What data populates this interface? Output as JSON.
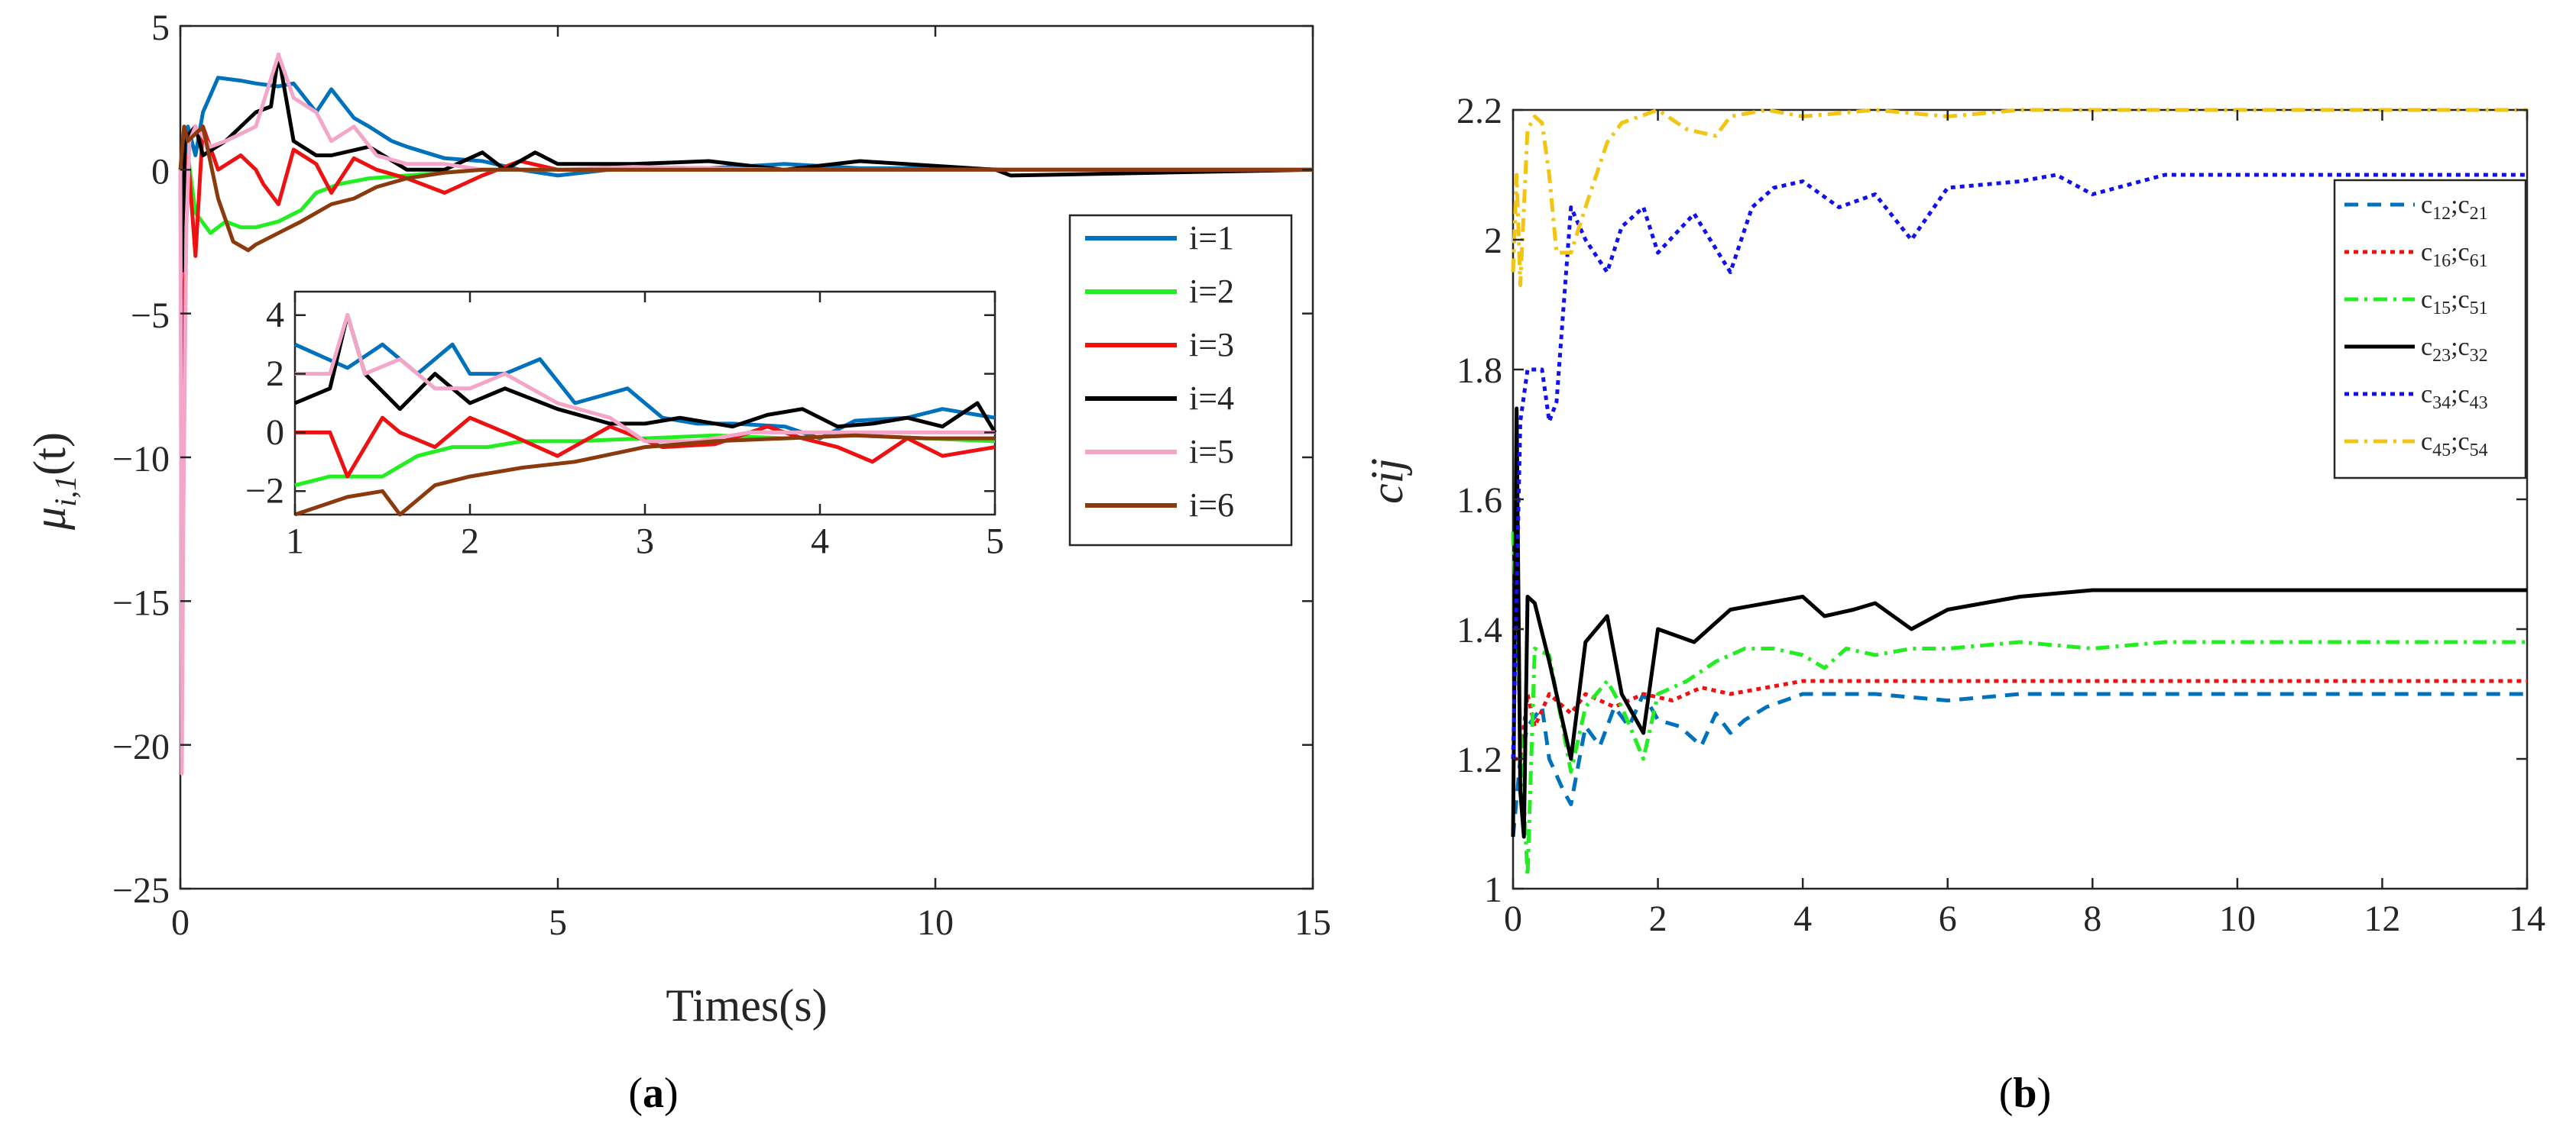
{
  "chart_data": [
    {
      "id": "a",
      "type": "line",
      "caption": [
        "(",
        "a",
        ")"
      ],
      "xlabel": "Times(s)",
      "ylabel": "μ",
      "ylabel_sub": "i,1",
      "ylabel_arg": "(t)",
      "xlim": [
        0,
        15
      ],
      "ylim": [
        -25,
        5
      ],
      "xticks": [
        "0",
        "5",
        "10",
        "15"
      ],
      "yticks": [
        "5",
        "0",
        "−5",
        "−10",
        "−15",
        "−20",
        "−25"
      ],
      "legend": [
        "i=1",
        "i=2",
        "i=3",
        "i=4",
        "i=5",
        "i=6"
      ],
      "colors": [
        "#0072BD",
        "#22EE22",
        "#EE1111",
        "#000000",
        "#F4A6C8",
        "#8B3A0E"
      ],
      "series": [
        {
          "name": "i=1",
          "x": [
            0,
            0.05,
            0.1,
            0.2,
            0.3,
            0.5,
            0.8,
            1.0,
            1.3,
            1.5,
            1.8,
            2.0,
            2.3,
            2.5,
            2.8,
            3.0,
            3.5,
            4.0,
            4.5,
            5.0,
            6.0,
            7.0,
            8.0,
            9.0,
            10.0,
            11.0,
            15.0
          ],
          "y": [
            0,
            -3,
            1.5,
            0.5,
            2.0,
            3.2,
            3.1,
            3.0,
            2.9,
            3.0,
            2.0,
            2.8,
            1.8,
            1.5,
            1.0,
            0.8,
            0.4,
            0.3,
            0.0,
            -0.2,
            0.1,
            0.05,
            0.2,
            0.05,
            0.05,
            0.0,
            0.0
          ]
        },
        {
          "name": "i=2",
          "x": [
            0,
            0.05,
            0.1,
            0.2,
            0.4,
            0.6,
            0.8,
            1.0,
            1.3,
            1.6,
            1.8,
            2.1,
            2.5,
            3.0,
            3.5,
            4.0,
            5.0,
            6.0,
            8.0,
            10.0,
            15.0
          ],
          "y": [
            0,
            -2.0,
            0.5,
            -1.5,
            -2.2,
            -1.8,
            -2.0,
            -2.0,
            -1.8,
            -1.4,
            -0.8,
            -0.5,
            -0.3,
            -0.2,
            -0.1,
            0.0,
            0.0,
            0.0,
            0.0,
            0.0,
            0.0
          ]
        },
        {
          "name": "i=3",
          "x": [
            0,
            0.03,
            0.06,
            0.1,
            0.2,
            0.3,
            0.5,
            0.8,
            1.0,
            1.1,
            1.3,
            1.5,
            1.8,
            2.0,
            2.3,
            2.6,
            3.0,
            3.5,
            4.0,
            4.5,
            5.0,
            6.0,
            8.0,
            10.0,
            15.0
          ],
          "y": [
            0,
            -12.0,
            -4.0,
            0.5,
            -3.0,
            1.5,
            0.0,
            0.5,
            0.0,
            -0.5,
            -1.2,
            0.7,
            0.2,
            -0.8,
            0.4,
            0.0,
            -0.3,
            -0.8,
            -0.2,
            0.3,
            0.0,
            0.0,
            0.0,
            0.0,
            0.0
          ]
        },
        {
          "name": "i=4",
          "x": [
            0,
            0.03,
            0.06,
            0.1,
            0.2,
            0.3,
            0.6,
            1.0,
            1.2,
            1.3,
            1.5,
            1.8,
            2.0,
            2.5,
            3.0,
            3.5,
            4.0,
            4.3,
            4.7,
            5.0,
            6.0,
            7.0,
            8.0,
            9.0,
            10.8,
            11.0,
            15.0
          ],
          "y": [
            0,
            -3.5,
            1.0,
            1.2,
            1.5,
            0.5,
            1.0,
            2.0,
            2.2,
            4.0,
            1.0,
            0.5,
            0.5,
            0.8,
            0.0,
            0.0,
            0.6,
            0.0,
            0.6,
            0.2,
            0.2,
            0.3,
            0.0,
            0.3,
            0.0,
            -0.2,
            0.0
          ]
        },
        {
          "name": "i=5",
          "x": [
            0,
            0.02,
            0.04,
            0.08,
            0.12,
            0.2,
            0.4,
            0.6,
            1.0,
            1.3,
            1.5,
            1.8,
            2.0,
            2.3,
            2.6,
            3.0,
            3.5,
            4.0,
            5.0,
            6.0,
            8.0,
            10.0,
            15.0
          ],
          "y": [
            0,
            -21.0,
            -12.0,
            -2.0,
            1.0,
            1.5,
            0.8,
            1.0,
            1.5,
            4.0,
            2.5,
            2.0,
            1.0,
            1.5,
            0.5,
            0.2,
            0.2,
            0.0,
            0.0,
            0.1,
            0.0,
            0.0,
            0.0
          ]
        },
        {
          "name": "i=6",
          "x": [
            0,
            0.05,
            0.1,
            0.3,
            0.5,
            0.7,
            0.9,
            1.0,
            1.3,
            1.6,
            1.8,
            2.0,
            2.3,
            2.6,
            3.0,
            3.5,
            4.0,
            5.0,
            6.0,
            8.0,
            10.0,
            15.0
          ],
          "y": [
            0,
            1.5,
            1.0,
            1.5,
            -1.0,
            -2.5,
            -2.8,
            -2.6,
            -2.2,
            -1.8,
            -1.5,
            -1.2,
            -1.0,
            -0.6,
            -0.3,
            -0.1,
            0.0,
            0.0,
            0.0,
            0.0,
            0.0,
            0.0
          ]
        }
      ],
      "inset": {
        "xlim": [
          1,
          5
        ],
        "ylim": [
          -2.8,
          4.8
        ],
        "xticks": [
          "1",
          "2",
          "3",
          "4",
          "5"
        ],
        "yticks": [
          "4",
          "2",
          "0",
          "−2"
        ],
        "series": [
          {
            "name": "i=1",
            "x": [
              1.0,
              1.3,
              1.5,
              1.7,
              1.9,
              2.0,
              2.2,
              2.4,
              2.6,
              2.9,
              3.1,
              3.3,
              3.5,
              3.8,
              4.0,
              4.2,
              4.5,
              4.7,
              4.9,
              5.0
            ],
            "y": [
              3.0,
              2.2,
              3.0,
              2.0,
              3.0,
              2.0,
              2.0,
              2.5,
              1.0,
              1.5,
              0.5,
              0.3,
              0.3,
              0.2,
              -0.2,
              0.4,
              0.5,
              0.8,
              0.6,
              0.5
            ]
          },
          {
            "name": "i=2",
            "x": [
              1.0,
              1.2,
              1.5,
              1.7,
              1.9,
              2.1,
              2.3,
              2.6,
              3.0,
              3.4,
              3.8,
              4.2,
              4.6,
              5.0
            ],
            "y": [
              -1.8,
              -1.5,
              -1.5,
              -0.8,
              -0.5,
              -0.5,
              -0.3,
              -0.3,
              -0.2,
              -0.1,
              -0.2,
              -0.1,
              -0.2,
              -0.3
            ]
          },
          {
            "name": "i=3",
            "x": [
              1.0,
              1.2,
              1.3,
              1.5,
              1.6,
              1.8,
              2.0,
              2.2,
              2.5,
              2.8,
              3.1,
              3.4,
              3.7,
              3.9,
              4.1,
              4.3,
              4.5,
              4.7,
              5.0
            ],
            "y": [
              0.0,
              0.0,
              -1.5,
              0.5,
              0.0,
              -0.5,
              0.5,
              0.0,
              -0.8,
              0.2,
              -0.5,
              -0.4,
              0.2,
              -0.2,
              -0.5,
              -1.0,
              -0.2,
              -0.8,
              -0.5
            ]
          },
          {
            "name": "i=4",
            "x": [
              1.0,
              1.2,
              1.3,
              1.4,
              1.6,
              1.8,
              2.0,
              2.2,
              2.5,
              2.8,
              3.0,
              3.2,
              3.5,
              3.7,
              3.9,
              4.1,
              4.3,
              4.5,
              4.7,
              4.9,
              5.0
            ],
            "y": [
              1.0,
              1.5,
              4.0,
              2.0,
              0.8,
              2.0,
              1.0,
              1.5,
              0.8,
              0.3,
              0.3,
              0.5,
              0.2,
              0.6,
              0.8,
              0.2,
              0.3,
              0.5,
              0.2,
              1.0,
              0.0
            ]
          },
          {
            "name": "i=5",
            "x": [
              1.0,
              1.2,
              1.3,
              1.4,
              1.6,
              1.8,
              2.0,
              2.2,
              2.5,
              2.8,
              3.0,
              3.3,
              3.6,
              4.0,
              4.4,
              4.8,
              5.0
            ],
            "y": [
              2.0,
              2.0,
              4.0,
              2.0,
              2.5,
              1.5,
              1.5,
              2.0,
              1.0,
              0.5,
              -0.3,
              -0.3,
              0.0,
              0.0,
              0.0,
              0.0,
              0.0
            ]
          },
          {
            "name": "i=6",
            "x": [
              1.0,
              1.3,
              1.5,
              1.6,
              1.8,
              2.0,
              2.3,
              2.6,
              3.0,
              3.4,
              3.8,
              4.2,
              4.6,
              5.0
            ],
            "y": [
              -2.8,
              -2.2,
              -2.0,
              -2.8,
              -1.8,
              -1.5,
              -1.2,
              -1.0,
              -0.5,
              -0.3,
              -0.2,
              -0.1,
              -0.2,
              -0.2
            ]
          }
        ]
      }
    },
    {
      "id": "b",
      "type": "line",
      "caption": [
        "(",
        "b",
        ")"
      ],
      "xlabel": "",
      "ylabel": "cij",
      "xlim": [
        0,
        14
      ],
      "ylim": [
        1,
        2.2
      ],
      "xticks": [
        "0",
        "2",
        "4",
        "6",
        "8",
        "10",
        "12",
        "14"
      ],
      "yticks": [
        "2.2",
        "2",
        "1.8",
        "1.6",
        "1.4",
        "1.2",
        "1"
      ],
      "legend": [
        {
          "a": "c",
          "a_sub": "12",
          "sep": ";c",
          "b_sub": "21"
        },
        {
          "a": "c",
          "a_sub": "16",
          "sep": ";c",
          "b_sub": "61"
        },
        {
          "a": "c",
          "a_sub": "15",
          "sep": ";c",
          "b_sub": "51"
        },
        {
          "a": "c",
          "a_sub": "23",
          "sep": ";c",
          "b_sub": "32"
        },
        {
          "a": "c",
          "a_sub": "34",
          "sep": ";c",
          "b_sub": "43"
        },
        {
          "a": "c",
          "a_sub": "45",
          "sep": ";c",
          "b_sub": "54"
        }
      ],
      "colors": [
        "#0072BD",
        "#EE1111",
        "#22EE22",
        "#000000",
        "#1111EE",
        "#F2C512"
      ],
      "dashes": [
        "18 12",
        "6 6",
        "18 8 4 8",
        "",
        "6 6",
        "18 8 4 8"
      ],
      "series": [
        {
          "name": "c12;c21",
          "x": [
            0,
            0.1,
            0.2,
            0.4,
            0.5,
            0.7,
            0.8,
            1.0,
            1.2,
            1.4,
            1.6,
            1.8,
            2.0,
            2.3,
            2.6,
            2.8,
            3.0,
            3.2,
            3.5,
            4.0,
            5.0,
            6.0,
            7.0,
            8.0,
            10.0,
            12.0,
            14.0
          ],
          "y": [
            1.08,
            1.2,
            1.25,
            1.28,
            1.2,
            1.15,
            1.13,
            1.25,
            1.22,
            1.28,
            1.25,
            1.3,
            1.26,
            1.25,
            1.22,
            1.27,
            1.24,
            1.26,
            1.28,
            1.3,
            1.3,
            1.29,
            1.3,
            1.3,
            1.3,
            1.3,
            1.3
          ]
        },
        {
          "name": "c16;c61",
          "x": [
            0,
            0.1,
            0.2,
            0.3,
            0.5,
            0.8,
            1.0,
            1.4,
            1.8,
            2.2,
            2.6,
            3.0,
            3.5,
            4.0,
            5.0,
            6.0,
            7.0,
            8.0,
            10.0,
            12.0,
            14.0
          ],
          "y": [
            1.2,
            1.2,
            1.3,
            1.25,
            1.3,
            1.27,
            1.3,
            1.28,
            1.3,
            1.29,
            1.31,
            1.3,
            1.31,
            1.32,
            1.32,
            1.32,
            1.32,
            1.32,
            1.32,
            1.32,
            1.32
          ]
        },
        {
          "name": "c15;c51",
          "x": [
            0,
            0.1,
            0.2,
            0.3,
            0.5,
            0.8,
            1.0,
            1.3,
            1.5,
            1.8,
            2.0,
            2.4,
            2.8,
            3.2,
            3.6,
            4.0,
            4.3,
            4.6,
            5.0,
            5.5,
            6.0,
            7.0,
            8.0,
            9.0,
            10.0,
            12.0,
            14.0
          ],
          "y": [
            1.55,
            1.25,
            1.02,
            1.37,
            1.36,
            1.18,
            1.28,
            1.32,
            1.28,
            1.2,
            1.3,
            1.32,
            1.35,
            1.37,
            1.37,
            1.36,
            1.34,
            1.37,
            1.36,
            1.37,
            1.37,
            1.38,
            1.37,
            1.38,
            1.38,
            1.38,
            1.38
          ]
        },
        {
          "name": "c23;c32",
          "x": [
            0,
            0.05,
            0.1,
            0.15,
            0.2,
            0.3,
            0.5,
            0.8,
            1.0,
            1.3,
            1.5,
            1.8,
            2.0,
            2.5,
            3.0,
            3.5,
            4.0,
            4.3,
            4.7,
            5.0,
            5.5,
            6.0,
            7.0,
            8.0,
            9.0,
            10.0,
            12.0,
            14.0
          ],
          "y": [
            1.08,
            1.74,
            1.15,
            1.08,
            1.45,
            1.44,
            1.35,
            1.2,
            1.38,
            1.42,
            1.3,
            1.24,
            1.4,
            1.38,
            1.43,
            1.44,
            1.45,
            1.42,
            1.43,
            1.44,
            1.4,
            1.43,
            1.45,
            1.46,
            1.46,
            1.46,
            1.46,
            1.46
          ]
        },
        {
          "name": "c34;c43",
          "x": [
            0,
            0.1,
            0.2,
            0.4,
            0.5,
            0.6,
            0.7,
            0.8,
            1.0,
            1.3,
            1.5,
            1.8,
            2.0,
            2.5,
            3.0,
            3.3,
            3.6,
            4.0,
            4.5,
            5.0,
            5.5,
            6.0,
            7.0,
            7.5,
            8.0,
            9.0,
            10.0,
            12.0,
            14.0
          ],
          "y": [
            1.2,
            1.72,
            1.8,
            1.8,
            1.72,
            1.75,
            1.9,
            2.05,
            2.0,
            1.95,
            2.02,
            2.05,
            1.98,
            2.04,
            1.95,
            2.05,
            2.08,
            2.09,
            2.05,
            2.07,
            2.0,
            2.08,
            2.09,
            2.1,
            2.07,
            2.1,
            2.1,
            2.1,
            2.1
          ]
        },
        {
          "name": "c45;c54",
          "x": [
            0,
            0.05,
            0.1,
            0.2,
            0.3,
            0.4,
            0.5,
            0.6,
            0.8,
            1.0,
            1.3,
            1.5,
            2.0,
            2.4,
            2.8,
            3.0,
            3.5,
            4.0,
            5.0,
            6.0,
            7.0,
            8.0,
            9.0,
            10.0,
            12.0,
            14.0
          ],
          "y": [
            1.95,
            2.1,
            1.93,
            2.17,
            2.19,
            2.18,
            2.1,
            1.98,
            1.98,
            2.05,
            2.15,
            2.18,
            2.2,
            2.17,
            2.16,
            2.19,
            2.2,
            2.19,
            2.2,
            2.19,
            2.2,
            2.2,
            2.2,
            2.2,
            2.2,
            2.2
          ]
        }
      ]
    }
  ]
}
